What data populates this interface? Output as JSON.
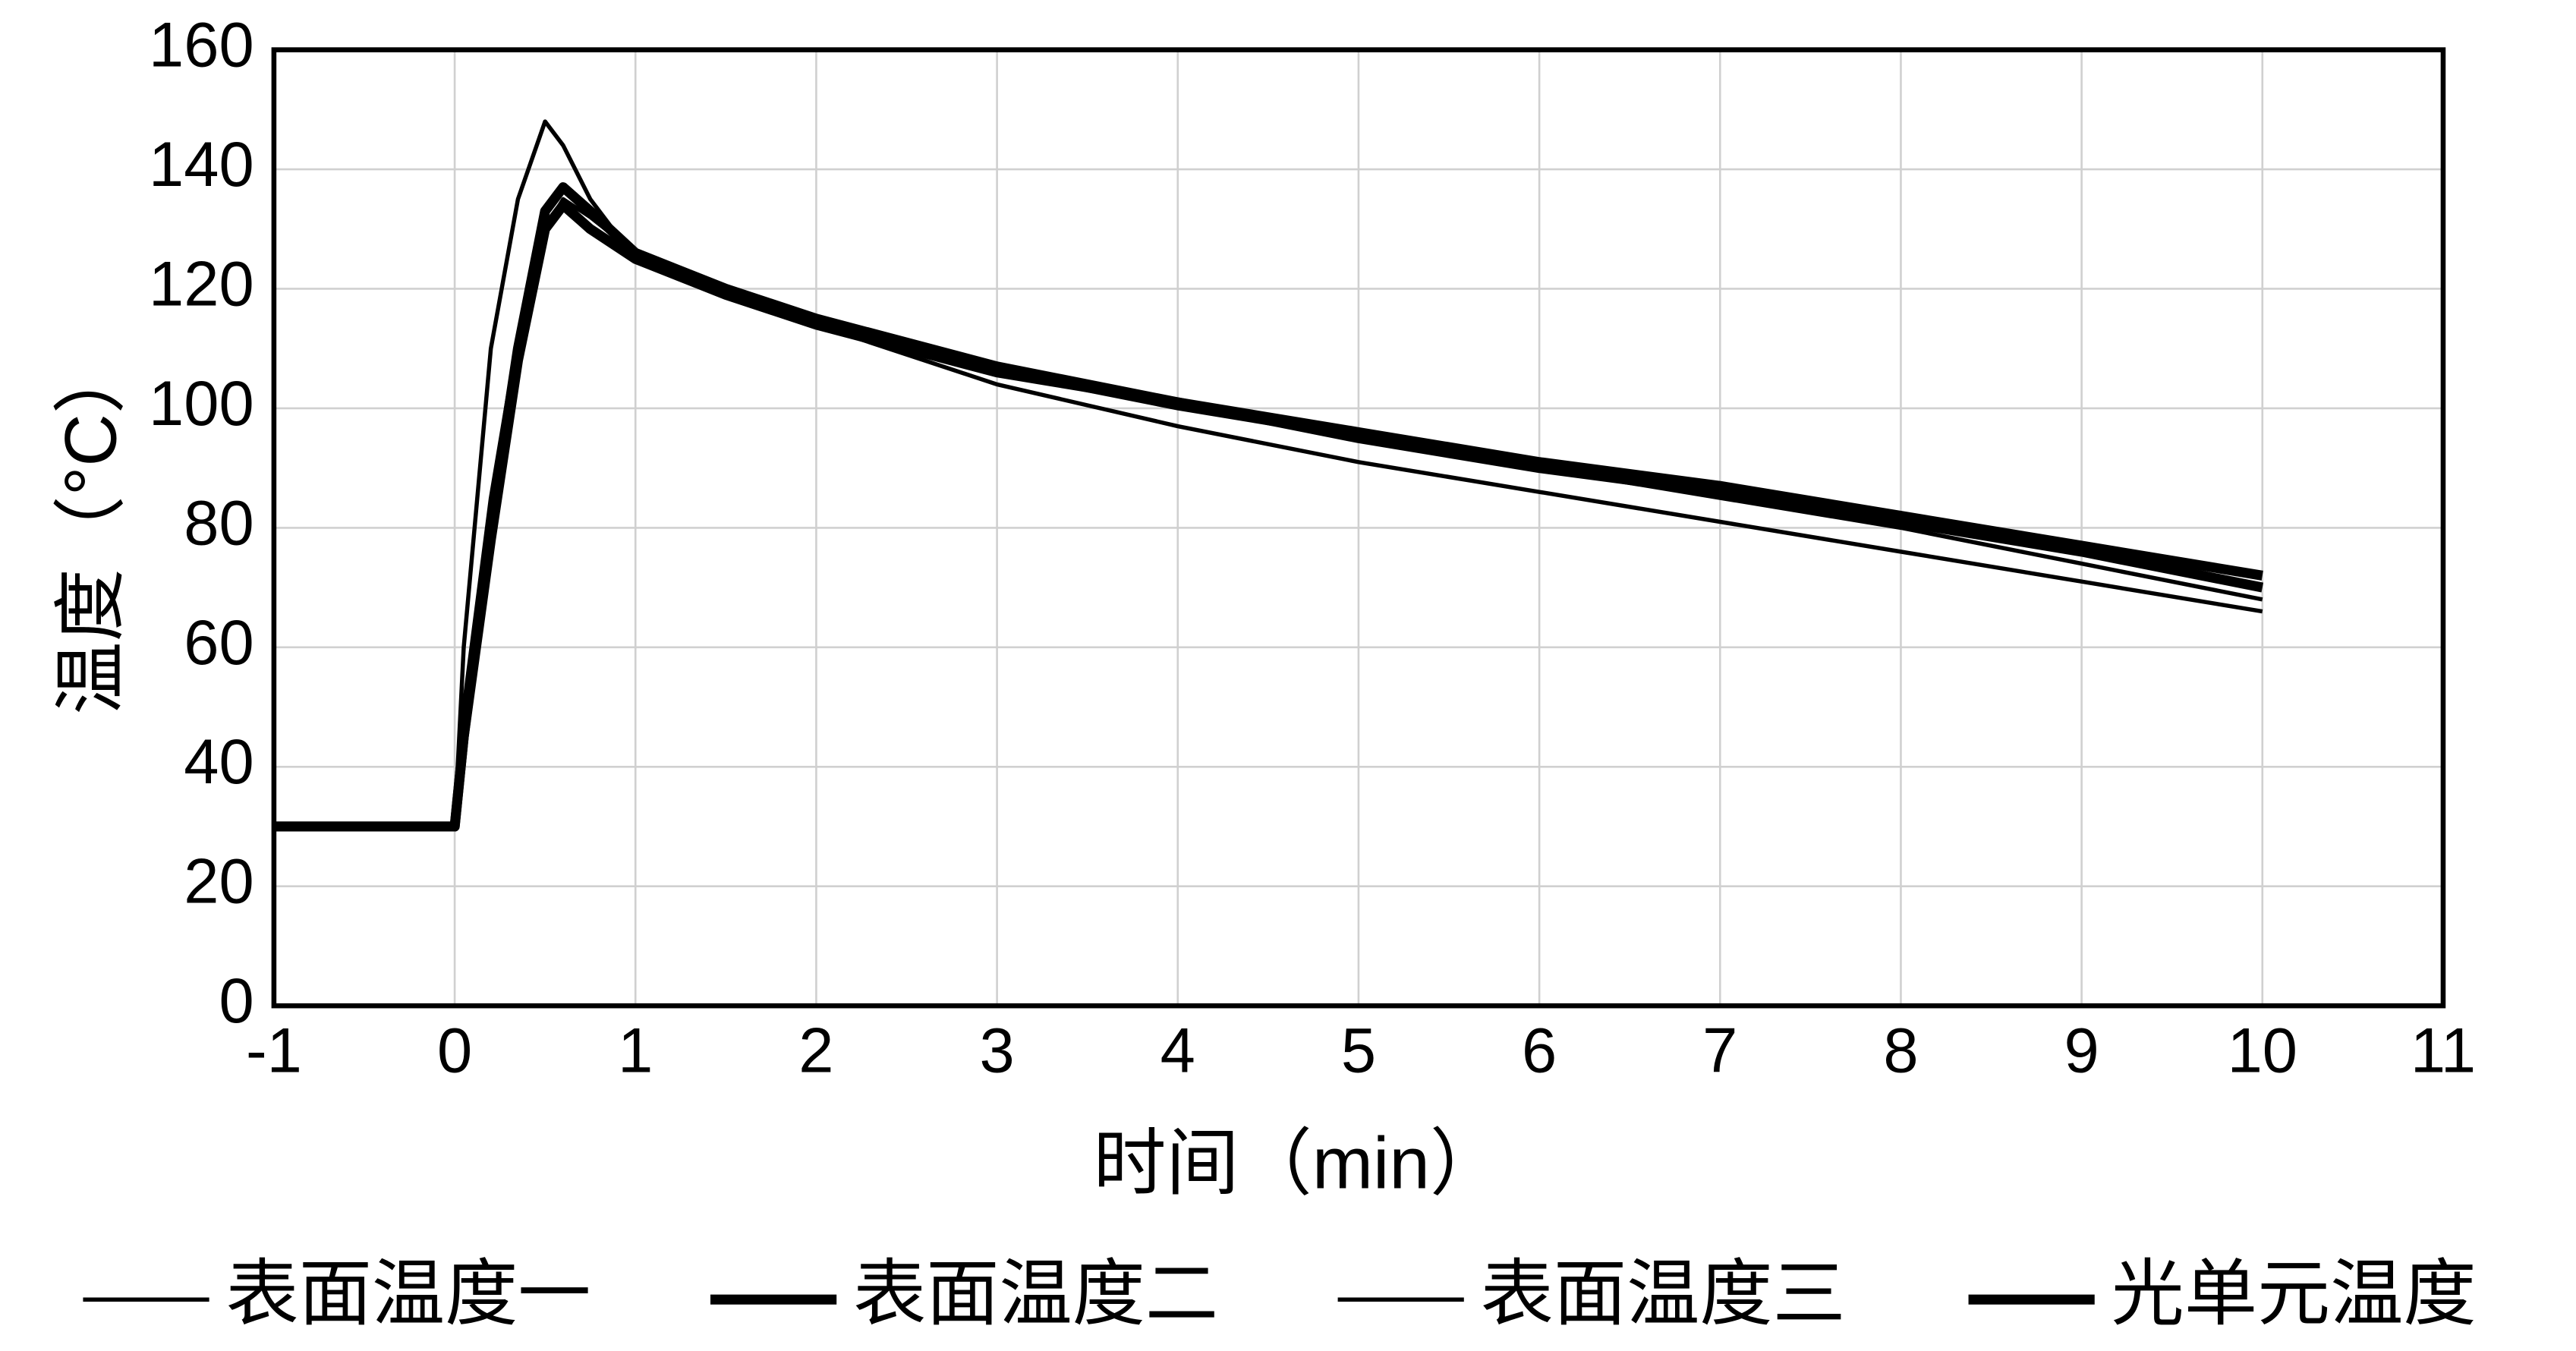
{
  "chart_data": {
    "type": "line",
    "x_label": "时间（min）",
    "y_label": "温度（°C）",
    "x": [
      -1,
      0,
      0.05,
      0.2,
      0.35,
      0.5,
      0.6,
      0.75,
      1,
      1.5,
      2,
      3,
      4,
      5,
      6,
      7,
      8,
      9,
      10
    ],
    "series": [
      {
        "name": "表面温度一",
        "color": "#000000",
        "values": [
          30,
          30,
          60,
          110,
          135,
          148,
          144,
          135,
          125,
          119,
          114,
          104,
          97,
          91,
          86,
          81,
          76,
          71,
          66
        ]
      },
      {
        "name": "表面温度二",
        "color": "#000000",
        "values": [
          30,
          30,
          45,
          80,
          110,
          133,
          137,
          133,
          126,
          120,
          115,
          107,
          101,
          96,
          91,
          87,
          82,
          77,
          72
        ]
      },
      {
        "name": "表面温度三",
        "color": "#000000",
        "values": [
          30,
          30,
          50,
          85,
          112,
          130,
          135,
          132,
          126,
          120,
          115,
          106,
          100,
          95,
          90,
          85,
          80,
          74,
          68
        ]
      },
      {
        "name": "光单元温度",
        "color": "#000000",
        "values": [
          30,
          30,
          45,
          78,
          108,
          130,
          134,
          130,
          125,
          119,
          114,
          106,
          101,
          95,
          90,
          86,
          81,
          76,
          70
        ]
      }
    ],
    "xlim": [
      -1,
      11
    ],
    "xticks": [
      -1,
      0,
      1,
      2,
      3,
      4,
      5,
      6,
      7,
      8,
      9,
      10,
      11
    ],
    "ylim": [
      0,
      160
    ],
    "yticks": [
      0,
      20,
      40,
      60,
      80,
      100,
      120,
      140,
      160
    ],
    "grid": true,
    "legend": "bottom"
  }
}
